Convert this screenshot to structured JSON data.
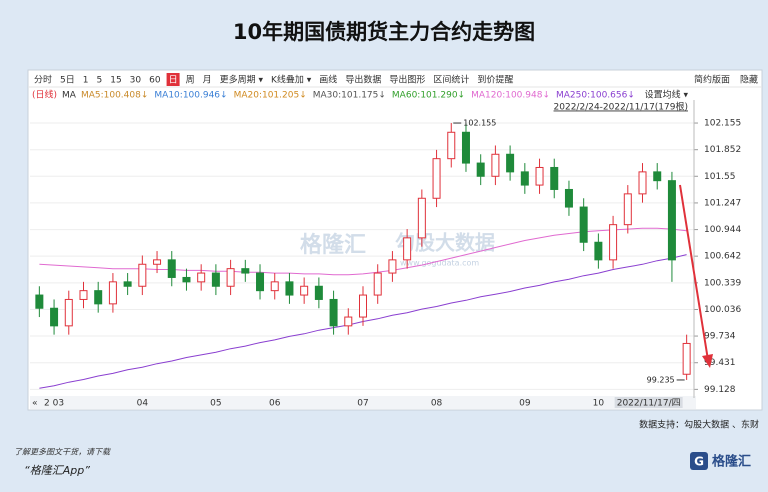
{
  "chart_data": {
    "type": "candlestick",
    "title": "10年期国债期货主力合约走势图",
    "toolbar": [
      "分时",
      "5日",
      "1",
      "5",
      "15",
      "30",
      "60",
      "日",
      "周",
      "月",
      "更多周期 ▾",
      "K线叠加 ▾",
      "画线",
      "导出数据",
      "导出图形",
      "区间统计",
      "到价提醒"
    ],
    "toolbar_active": 7,
    "toolbar_right": [
      "简约版面",
      "隐藏"
    ],
    "legend_prefix": [
      "(日线)",
      "MA"
    ],
    "ma_legend": [
      {
        "label": "MA5:100.408↓",
        "color": "#c98a2a"
      },
      {
        "label": "MA10:100.946↓",
        "color": "#3a7fd5"
      },
      {
        "label": "MA20:101.205↓",
        "color": "#d08a20"
      },
      {
        "label": "MA30:101.175↓",
        "color": "#555555"
      },
      {
        "label": "MA60:101.290↓",
        "color": "#33a02c"
      },
      {
        "label": "MA120:100.948↓",
        "color": "#e06ad0"
      },
      {
        "label": "MA250:100.656↓",
        "color": "#8a3fd0"
      }
    ],
    "ma_setting": "设置均线 ▾",
    "date_range": "2022/2/24-2022/11/17(179根)",
    "watermark": [
      "格隆汇",
      "勾股大数据",
      "www.gogudata.com"
    ],
    "source": "数据支持：勾股大数据 、东财",
    "footer": [
      "了解更多图文干货，请下载",
      "“格隆汇App”"
    ],
    "logo": "格隆汇",
    "up_color": "#e0313a",
    "down_color": "#1f8a3a",
    "categories": [
      null,
      "2 03",
      null,
      null,
      null,
      null,
      null,
      "04",
      null,
      null,
      null,
      null,
      "05",
      null,
      null,
      null,
      "06",
      null,
      null,
      null,
      null,
      null,
      "07",
      null,
      null,
      null,
      null,
      "08",
      null,
      null,
      null,
      null,
      null,
      "09",
      null,
      null,
      null,
      null,
      "10",
      null,
      null,
      null,
      null,
      null,
      "2022/11/17/四"
    ],
    "open": [
      100.2,
      100.05,
      99.85,
      100.15,
      100.25,
      100.1,
      100.35,
      100.3,
      100.55,
      100.6,
      100.4,
      100.35,
      100.45,
      100.3,
      100.5,
      100.45,
      100.25,
      100.35,
      100.2,
      100.3,
      100.15,
      99.85,
      99.95,
      100.2,
      100.45,
      100.6,
      100.85,
      101.3,
      101.75,
      102.05,
      101.7,
      101.55,
      101.8,
      101.6,
      101.45,
      101.65,
      101.4,
      101.2,
      100.8,
      100.6,
      101.0,
      101.35,
      101.6,
      101.5,
      99.3
    ],
    "high": [
      100.3,
      100.15,
      100.25,
      100.35,
      100.35,
      100.45,
      100.45,
      100.65,
      100.7,
      100.7,
      100.5,
      100.55,
      100.55,
      100.6,
      100.6,
      100.55,
      100.45,
      100.45,
      100.4,
      100.4,
      100.25,
      100.05,
      100.3,
      100.55,
      100.7,
      100.95,
      101.4,
      101.85,
      102.155,
      102.15,
      101.8,
      101.9,
      101.9,
      101.7,
      101.75,
      101.75,
      101.5,
      101.3,
      100.9,
      101.1,
      101.45,
      101.7,
      101.7,
      101.6,
      99.75
    ],
    "low": [
      99.95,
      99.75,
      99.75,
      100.05,
      100.0,
      100.0,
      100.2,
      100.2,
      100.45,
      100.3,
      100.25,
      100.25,
      100.2,
      100.2,
      100.35,
      100.15,
      100.15,
      100.1,
      100.1,
      100.05,
      99.75,
      99.75,
      99.85,
      100.1,
      100.35,
      100.5,
      100.75,
      101.2,
      101.65,
      101.6,
      101.45,
      101.45,
      101.5,
      101.35,
      101.35,
      101.3,
      101.1,
      100.7,
      100.5,
      100.5,
      100.9,
      101.25,
      101.4,
      100.35,
      99.235
    ],
    "close": [
      100.05,
      99.85,
      100.15,
      100.25,
      100.1,
      100.35,
      100.3,
      100.55,
      100.6,
      100.4,
      100.35,
      100.45,
      100.3,
      100.5,
      100.45,
      100.25,
      100.35,
      100.2,
      100.3,
      100.15,
      99.85,
      99.95,
      100.2,
      100.45,
      100.6,
      100.85,
      101.3,
      101.75,
      102.05,
      101.7,
      101.55,
      101.8,
      101.6,
      101.45,
      101.65,
      101.4,
      101.2,
      100.8,
      100.6,
      101.0,
      101.35,
      101.6,
      101.5,
      100.6,
      99.65
    ],
    "high_label_index": 28,
    "low_label_index": 44,
    "lines": [
      {
        "ma": 5,
        "values": [
          100.55,
          100.54,
          100.53,
          100.52,
          100.51,
          100.5,
          100.5,
          100.5,
          100.49,
          100.49,
          100.48,
          100.48,
          100.47,
          100.47,
          100.46,
          100.46,
          100.45,
          100.45,
          100.44,
          100.44,
          100.43,
          100.43,
          100.44,
          100.46,
          100.48,
          100.51,
          100.54,
          100.58,
          100.62,
          100.66,
          100.7,
          100.74,
          100.78,
          100.82,
          100.85,
          100.88,
          100.9,
          100.92,
          100.93,
          100.94,
          100.95,
          100.96,
          100.96,
          100.95,
          100.93
        ]
      },
      {
        "ma": 6,
        "values": [
          99.14,
          99.17,
          99.21,
          99.24,
          99.28,
          99.31,
          99.35,
          99.38,
          99.42,
          99.45,
          99.49,
          99.52,
          99.55,
          99.59,
          99.62,
          99.66,
          99.69,
          99.73,
          99.76,
          99.8,
          99.83,
          99.86,
          99.9,
          99.93,
          99.97,
          100.0,
          100.04,
          100.07,
          100.11,
          100.14,
          100.18,
          100.21,
          100.24,
          100.28,
          100.31,
          100.35,
          100.38,
          100.42,
          100.45,
          100.49,
          100.52,
          100.55,
          100.59,
          100.62,
          100.66
        ]
      }
    ],
    "ylim": [
      99.03,
      102.36
    ],
    "yticks": [
      102.155,
      101.852,
      101.55,
      101.247,
      100.944,
      100.642,
      100.339,
      100.036,
      99.734,
      99.431,
      99.128
    ],
    "grid": true
  }
}
